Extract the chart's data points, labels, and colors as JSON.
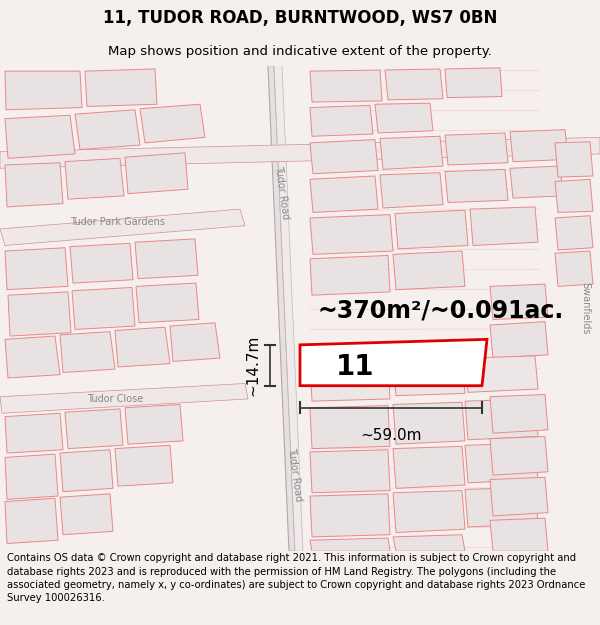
{
  "title": "11, TUDOR ROAD, BURNTWOOD, WS7 0BN",
  "subtitle": "Map shows position and indicative extent of the property.",
  "footer": "Contains OS data © Crown copyright and database right 2021. This information is subject to Crown copyright and database rights 2023 and is reproduced with the permission of HM Land Registry. The polygons (including the associated geometry, namely x, y co-ordinates) are subject to Crown copyright and database rights 2023 Ordnance Survey 100026316.",
  "area_label": "~370m²/~0.091ac.",
  "width_label": "~59.0m",
  "height_label": "~14.7m",
  "number_label": "11",
  "map_bg": "#ffffff",
  "fig_bg": "#f5f0ee",
  "bld_face": "#e8e2e2",
  "bld_edge_red": "#e88888",
  "bld_edge_gray": "#c0b8b8",
  "road_face": "#f5d0d0",
  "road_edge": "#e09090",
  "tudor_road_face": "#f0e8e8",
  "tudor_road_edge": "#c0a0a0",
  "plot_edge": "#dd0000",
  "dim_color": "#333333",
  "text_gray": "#888888",
  "title_fs": 12,
  "subtitle_fs": 9.5,
  "footer_fs": 7.2,
  "area_fs": 17,
  "num_fs": 20,
  "dim_fs": 11,
  "road_label_fs": 7,
  "street_label_fs": 7
}
